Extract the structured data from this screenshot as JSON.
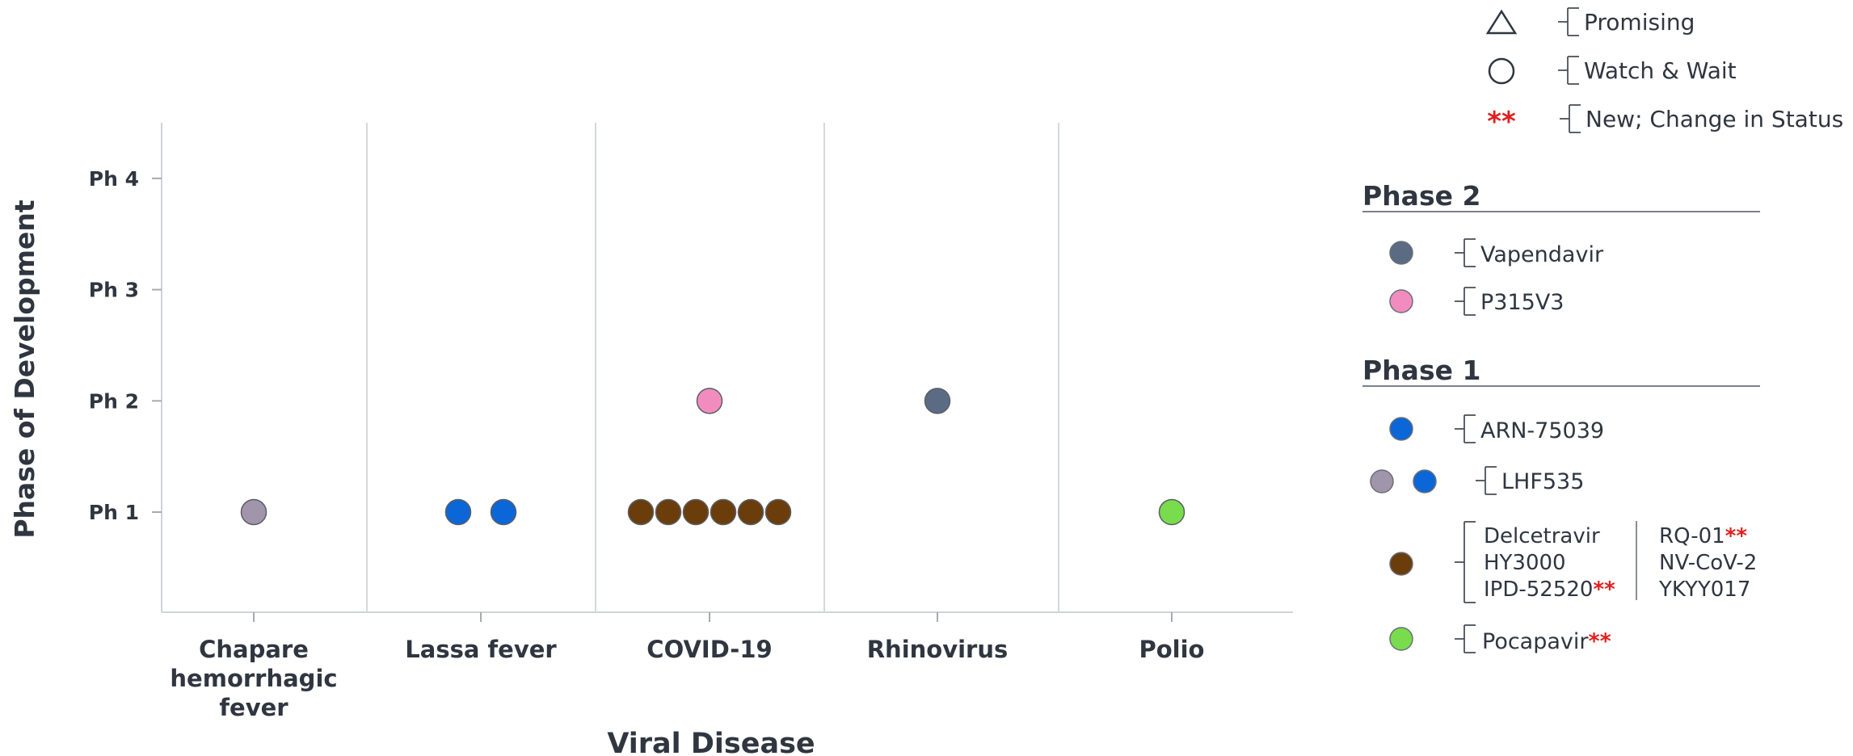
{
  "chart_data": {
    "type": "scatter",
    "title": "",
    "xlabel": "Viral Disease",
    "ylabel": "Phase of Development",
    "categories": [
      [
        "Chapare",
        "hemorrhagic",
        "fever"
      ],
      [
        "Lassa fever"
      ],
      [
        "COVID-19"
      ],
      [
        "Rhinovirus"
      ],
      [
        "Polio"
      ]
    ],
    "y_ticks": [
      "Ph 1",
      "Ph 2",
      "Ph 3",
      "Ph 4"
    ],
    "ylim": [
      0.1,
      4.5
    ],
    "grid": "vertical separators between categories",
    "legend_position": "right",
    "points": [
      {
        "category": "Chapare hemorrhagic fever",
        "phase": 1,
        "color": "#a095aa",
        "drug": "LHF535"
      },
      {
        "category": "Lassa fever",
        "phase": 1,
        "color": "#0b66d8",
        "drug": "ARN-75039"
      },
      {
        "category": "Lassa fever",
        "phase": 1,
        "color": "#0b66d8",
        "drug": "LHF535"
      },
      {
        "category": "COVID-19",
        "phase": 2,
        "color": "#f28cbf",
        "drug": "P315V3"
      },
      {
        "category": "COVID-19",
        "phase": 1,
        "color": "#6b3d0a",
        "drug": "Delcetravir / HY3000 / IPD-52520 / RQ-01 / NV-CoV-2 / YKYY017"
      },
      {
        "category": "COVID-19",
        "phase": 1,
        "color": "#6b3d0a"
      },
      {
        "category": "COVID-19",
        "phase": 1,
        "color": "#6b3d0a"
      },
      {
        "category": "COVID-19",
        "phase": 1,
        "color": "#6b3d0a"
      },
      {
        "category": "COVID-19",
        "phase": 1,
        "color": "#6b3d0a"
      },
      {
        "category": "COVID-19",
        "phase": 1,
        "color": "#6b3d0a"
      },
      {
        "category": "Rhinovirus",
        "phase": 2,
        "color": "#5c6b84",
        "drug": "Vapendavir"
      },
      {
        "category": "Polio",
        "phase": 1,
        "color": "#78dc4c",
        "drug": "Pocapavir"
      }
    ]
  },
  "legend": {
    "shapes": [
      {
        "icon": "triangle-icon",
        "label": "Promising"
      },
      {
        "icon": "circle-icon",
        "label": "Watch & Wait"
      },
      {
        "icon": "asterisk-icon",
        "symbol": "**",
        "label": "New; Change in Status"
      }
    ],
    "phase2_title": "Phase 2",
    "phase2_items": [
      {
        "color": "#5c6b84",
        "label": "Vapendavir"
      },
      {
        "color": "#f28cbf",
        "label": "P315V3"
      }
    ],
    "phase1_title": "Phase 1",
    "phase1_items": {
      "arn": {
        "color": "#0b66d8",
        "label": "ARN-75039"
      },
      "lhf": {
        "colors": [
          "#a095aa",
          "#0b66d8"
        ],
        "label": "LHF535"
      },
      "covid": {
        "color": "#6b3d0a",
        "left": [
          "Delcetravir",
          "HY3000",
          "IPD-52520"
        ],
        "left_star": [
          false,
          false,
          true
        ],
        "right": [
          "RQ-01",
          "NV-CoV-2",
          "YKYY017"
        ],
        "right_star": [
          true,
          false,
          false
        ]
      },
      "polio": {
        "color": "#78dc4c",
        "label": "Pocapavir",
        "star": true
      }
    },
    "star_symbol": "**"
  }
}
